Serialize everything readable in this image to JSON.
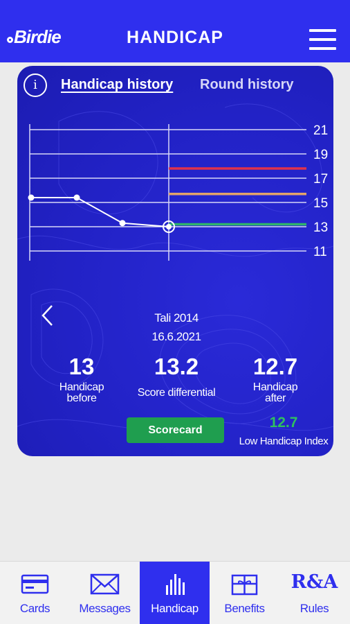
{
  "header": {
    "logo": "Birdie",
    "title": "HANDICAP"
  },
  "tabs": {
    "info_symbol": "i",
    "active": "Handicap history",
    "inactive": "Round history"
  },
  "chart_data": {
    "type": "line",
    "yticks": [
      21,
      19,
      17,
      15,
      13,
      11
    ],
    "ylim": [
      11,
      21
    ],
    "grid": true,
    "series": [
      {
        "values": [
          15.4,
          15.4,
          13.3,
          13.0
        ]
      }
    ],
    "reference_lines": [
      {
        "value": 17.8,
        "color": "#e0324b"
      },
      {
        "value": 15.7,
        "color": "#e2a36a"
      },
      {
        "value": 13.2,
        "color": "#2fb36b"
      }
    ]
  },
  "round": {
    "name": "Tali 2014",
    "date": "16.6.2021"
  },
  "stats": [
    {
      "value": "13",
      "label_line1": "Handicap",
      "label_line2": "before"
    },
    {
      "value": "13.2",
      "label_line1": "Score differential"
    },
    {
      "value": "12.7",
      "label_line1": "Handicap",
      "label_line2": "after"
    }
  ],
  "scorecard_label": "Scorecard",
  "low_index": {
    "value": "12.7",
    "label": "Low Handicap Index"
  },
  "nav": [
    {
      "label": "Cards",
      "icon": "card-icon"
    },
    {
      "label": "Messages",
      "icon": "envelope-icon"
    },
    {
      "label": "Handicap",
      "icon": "bar-chart-icon",
      "active": true
    },
    {
      "label": "Benefits",
      "icon": "gift-icon"
    },
    {
      "label": "Rules",
      "icon": "ra-logo",
      "logo_text": "R&A"
    }
  ],
  "colors": {
    "brand": "#2f2fee",
    "card": "#2222c6",
    "green": "#1f9e4f",
    "low_index": "#2fc060"
  }
}
